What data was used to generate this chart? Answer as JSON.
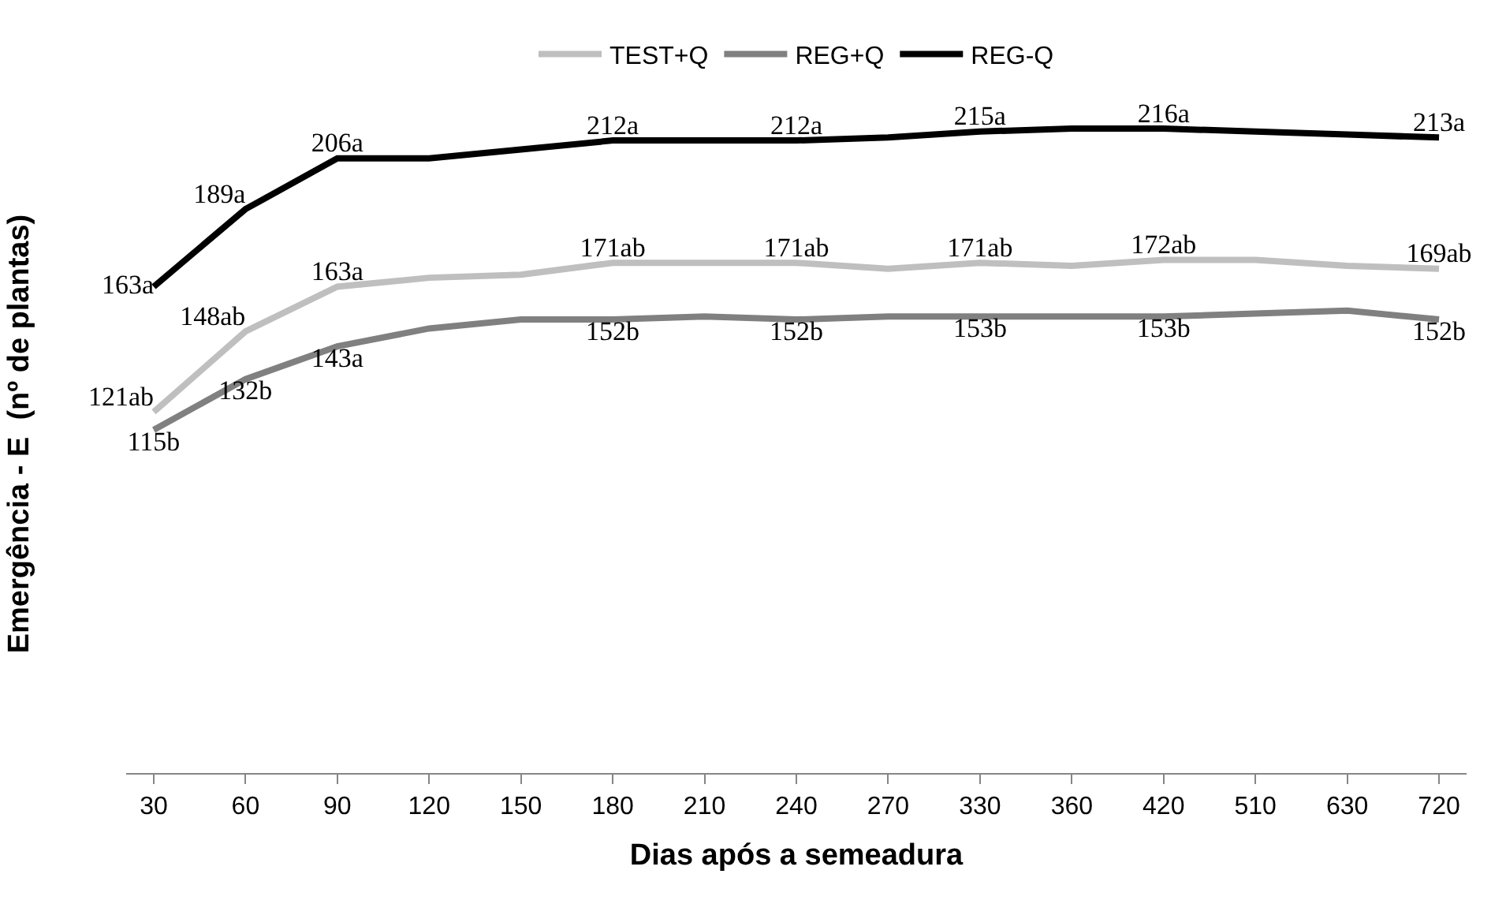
{
  "chart_data": {
    "type": "line",
    "xlabel": "Dias após a semeadura",
    "ylabel": "Emergência - E  (nº de plantas)",
    "categories": [
      "30",
      "60",
      "90",
      "120",
      "150",
      "180",
      "210",
      "240",
      "270",
      "330",
      "360",
      "420",
      "510",
      "630",
      "720"
    ],
    "tick_labels": "x",
    "legend": "top",
    "marker": "none",
    "line_style": "solid",
    "series": [
      {
        "name": "TEST+Q",
        "color": "#bfbfbf",
        "values": [
          121,
          148,
          163,
          166,
          167,
          171,
          171,
          171,
          169,
          171,
          170,
          172,
          172,
          170,
          169
        ],
        "value_labels": [
          "121ab",
          "148ab",
          "163a",
          null,
          null,
          "171ab",
          null,
          "171ab",
          null,
          "171ab",
          null,
          "172ab",
          null,
          null,
          "169ab"
        ]
      },
      {
        "name": "REG+Q",
        "color": "#808080",
        "values": [
          115,
          132,
          143,
          149,
          152,
          152,
          153,
          152,
          153,
          153,
          153,
          153,
          154,
          155,
          152
        ],
        "value_labels": [
          "115b",
          "132b",
          "143a",
          null,
          null,
          "152b",
          null,
          "152b",
          null,
          "153b",
          null,
          "153b",
          null,
          null,
          "152b"
        ]
      },
      {
        "name": "REG-Q",
        "color": "#000000",
        "values": [
          163,
          189,
          206,
          206,
          209,
          212,
          212,
          212,
          213,
          215,
          216,
          216,
          215,
          214,
          213
        ],
        "value_labels": [
          "163a",
          "189a",
          "206a",
          null,
          null,
          "212a",
          null,
          "212a",
          null,
          "215a",
          null,
          "216a",
          null,
          null,
          "213a"
        ]
      }
    ]
  }
}
